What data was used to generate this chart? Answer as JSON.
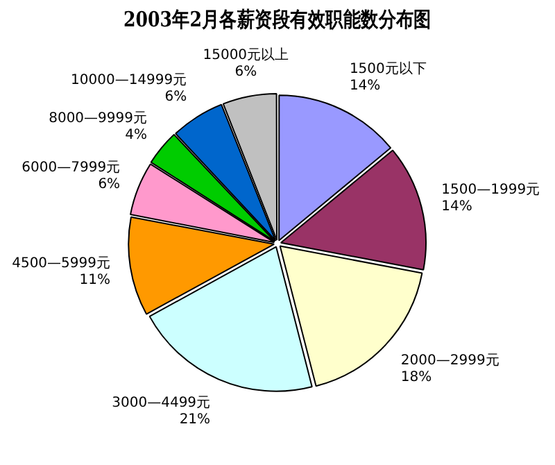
{
  "chart_data": {
    "type": "pie",
    "title": "2003年2月各薪资段有效职能数分布图",
    "categories": [
      "1500元以下",
      "1500—1999元",
      "2000—2999元",
      "3000—4499元",
      "4500—5999元",
      "6000—7999元",
      "8000—9999元",
      "10000—14999元",
      "15000元以上"
    ],
    "values": [
      14,
      14,
      18,
      21,
      11,
      6,
      4,
      6,
      6
    ],
    "colors": [
      "#9999ff",
      "#993366",
      "#ffffcc",
      "#ccffff",
      "#ff9900",
      "#ff99cc",
      "#00cc00",
      "#0066cc",
      "#c0c0c0"
    ],
    "value_labels": [
      "14%",
      "14%",
      "18%",
      "21%",
      "11%",
      "6%",
      "4%",
      "6%",
      "6%"
    ],
    "legend": false
  }
}
